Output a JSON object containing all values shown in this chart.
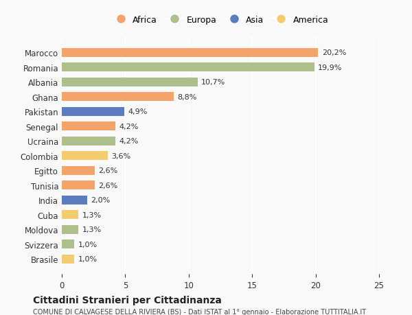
{
  "countries": [
    "Brasile",
    "Svizzera",
    "Moldova",
    "Cuba",
    "India",
    "Tunisia",
    "Egitto",
    "Colombia",
    "Ucraina",
    "Senegal",
    "Pakistan",
    "Ghana",
    "Albania",
    "Romania",
    "Marocco"
  ],
  "values": [
    1.0,
    1.0,
    1.3,
    1.3,
    2.0,
    2.6,
    2.6,
    3.6,
    4.2,
    4.2,
    4.9,
    8.8,
    10.7,
    19.9,
    20.2
  ],
  "labels": [
    "1,0%",
    "1,0%",
    "1,3%",
    "1,3%",
    "2,0%",
    "2,6%",
    "2,6%",
    "3,6%",
    "4,2%",
    "4,2%",
    "4,9%",
    "8,8%",
    "10,7%",
    "19,9%",
    "20,2%"
  ],
  "continents": [
    "America",
    "Europa",
    "Europa",
    "America",
    "Asia",
    "Africa",
    "Africa",
    "America",
    "Europa",
    "Africa",
    "Asia",
    "Africa",
    "Europa",
    "Europa",
    "Africa"
  ],
  "continent_colors": {
    "Africa": "#F4A46A",
    "Europa": "#ADBF8A",
    "Asia": "#5B7DC0",
    "America": "#F2CC6E"
  },
  "legend_order": [
    "Africa",
    "Europa",
    "Asia",
    "America"
  ],
  "xlim": [
    0,
    25
  ],
  "xticks": [
    0,
    5,
    10,
    15,
    20,
    25
  ],
  "title": "Cittadini Stranieri per Cittadinanza",
  "subtitle": "COMUNE DI CALVAGESE DELLA RIVIERA (BS) - Dati ISTAT al 1° gennaio - Elaborazione TUTTITALIA.IT",
  "background_color": "#f9f9f9",
  "bar_height": 0.6
}
